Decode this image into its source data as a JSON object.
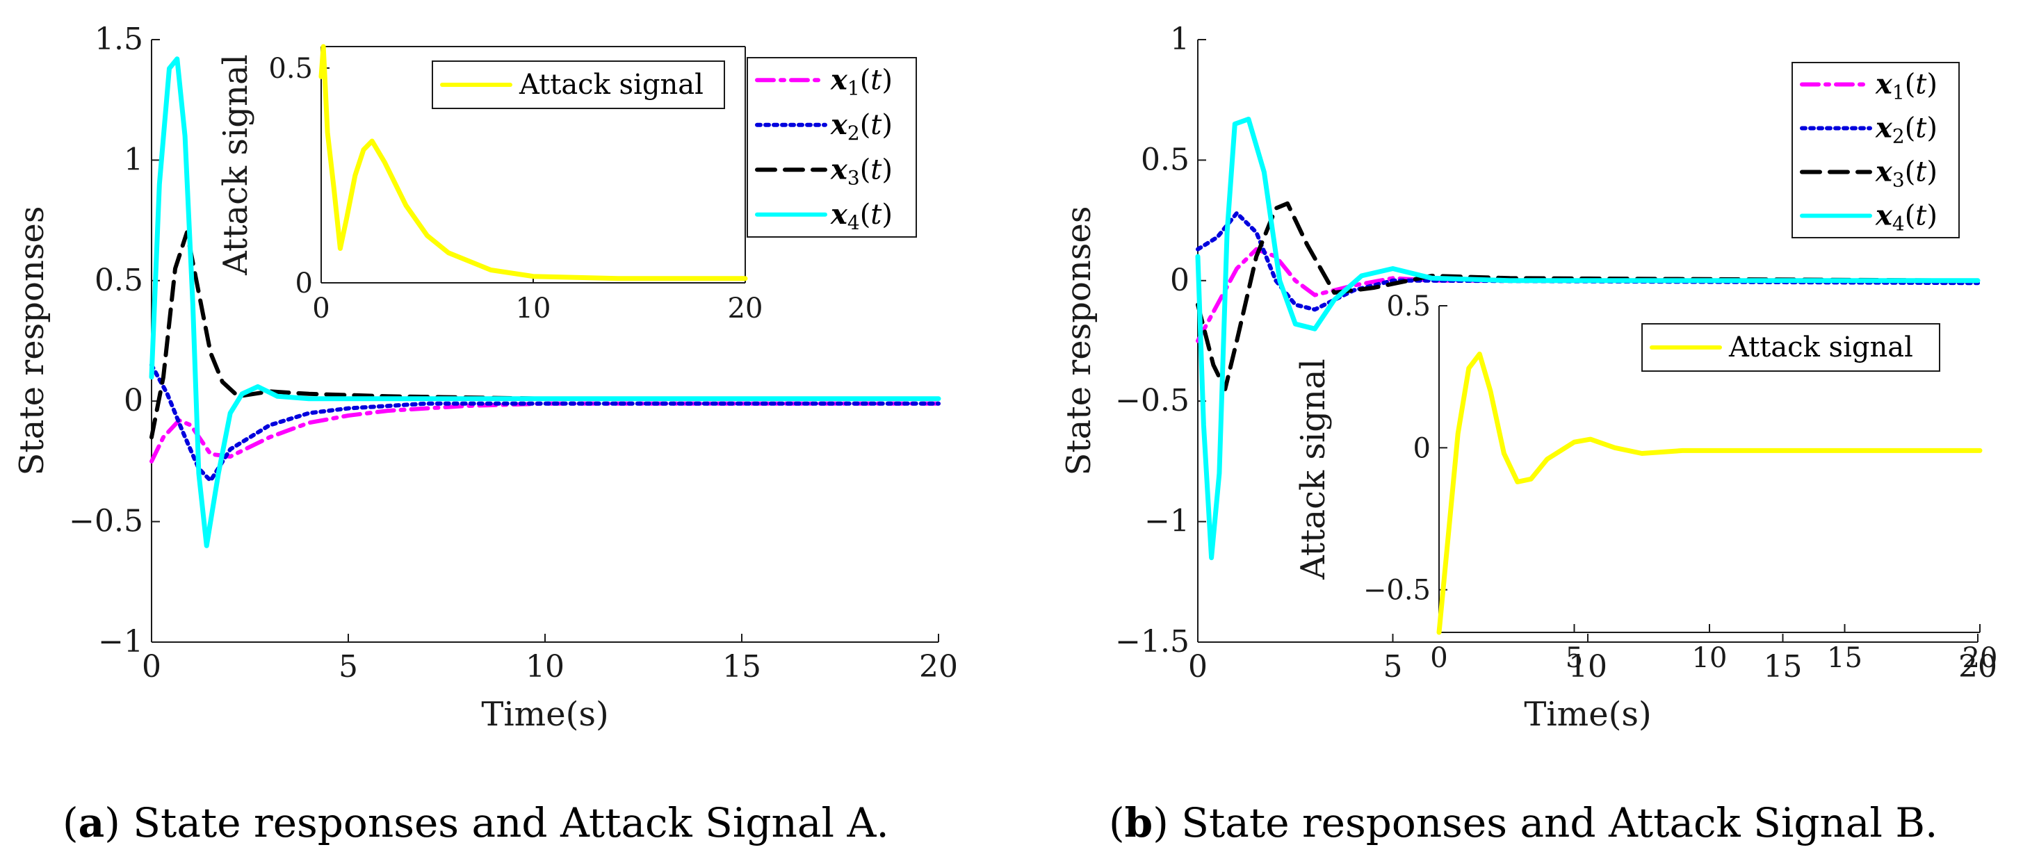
{
  "captions": {
    "a": {
      "tag": "a",
      "text": ") State responses and Attack Signal A."
    },
    "b": {
      "tag": "b",
      "text": ") State responses and Attack Signal B."
    }
  },
  "colors": {
    "x1": "#ff00ff",
    "x2": "#0000dd",
    "x3": "#000000",
    "x4": "#00ffff",
    "attack": "#ffff00"
  },
  "chart_data": [
    {
      "id": "a-main",
      "type": "line",
      "xlabel": "Time(s)",
      "ylabel": "State responses",
      "xlim": [
        0,
        20
      ],
      "ylim": [
        -1,
        1.5
      ],
      "xticks": [
        0,
        5,
        10,
        15,
        20
      ],
      "yticks": [
        -1,
        -0.5,
        0,
        0.5,
        1,
        1.5
      ],
      "legend": [
        "x1(t)",
        "x2(t)",
        "x3(t)",
        "x4(t)"
      ],
      "series": [
        {
          "name": "x1(t)",
          "color": "#ff00ff",
          "dash": "dashdot",
          "points": [
            [
              0,
              -0.25
            ],
            [
              0.3,
              -0.15
            ],
            [
              0.7,
              -0.08
            ],
            [
              1.0,
              -0.1
            ],
            [
              1.5,
              -0.22
            ],
            [
              2.0,
              -0.23
            ],
            [
              3,
              -0.15
            ],
            [
              4,
              -0.09
            ],
            [
              5,
              -0.06
            ],
            [
              6,
              -0.04
            ],
            [
              8,
              -0.02
            ],
            [
              10,
              -0.01
            ],
            [
              15,
              -0.01
            ],
            [
              20,
              -0.01
            ]
          ]
        },
        {
          "name": "x2(t)",
          "color": "#0000dd",
          "dash": "dotted",
          "points": [
            [
              0,
              0.15
            ],
            [
              0.4,
              0.03
            ],
            [
              0.8,
              -0.13
            ],
            [
              1.2,
              -0.28
            ],
            [
              1.5,
              -0.33
            ],
            [
              2.0,
              -0.2
            ],
            [
              3,
              -0.1
            ],
            [
              4,
              -0.05
            ],
            [
              5,
              -0.03
            ],
            [
              7,
              -0.01
            ],
            [
              10,
              -0.01
            ],
            [
              20,
              -0.01
            ]
          ]
        },
        {
          "name": "x3(t)",
          "color": "#000000",
          "dash": "dashed",
          "points": [
            [
              0,
              -0.15
            ],
            [
              0.3,
              0.1
            ],
            [
              0.6,
              0.55
            ],
            [
              0.9,
              0.7
            ],
            [
              1.2,
              0.45
            ],
            [
              1.5,
              0.2
            ],
            [
              1.8,
              0.08
            ],
            [
              2.2,
              0.02
            ],
            [
              3,
              0.04
            ],
            [
              4,
              0.03
            ],
            [
              6,
              0.02
            ],
            [
              10,
              0.01
            ],
            [
              20,
              0.01
            ]
          ]
        },
        {
          "name": "x4(t)",
          "color": "#00ffff",
          "dash": "solid",
          "points": [
            [
              0,
              0.1
            ],
            [
              0.2,
              0.9
            ],
            [
              0.45,
              1.38
            ],
            [
              0.65,
              1.42
            ],
            [
              0.85,
              1.1
            ],
            [
              1.05,
              0.4
            ],
            [
              1.2,
              -0.3
            ],
            [
              1.4,
              -0.6
            ],
            [
              1.7,
              -0.3
            ],
            [
              2.0,
              -0.05
            ],
            [
              2.3,
              0.03
            ],
            [
              2.7,
              0.06
            ],
            [
              3.2,
              0.02
            ],
            [
              4,
              0.01
            ],
            [
              6,
              0.01
            ],
            [
              20,
              0.01
            ]
          ]
        }
      ]
    },
    {
      "id": "a-inset",
      "type": "line",
      "xlabel": "",
      "ylabel": "Attack signal",
      "xlim": [
        0,
        20
      ],
      "ylim": [
        0,
        0.55
      ],
      "xticks": [
        0,
        10,
        20
      ],
      "yticks": [
        0,
        0.5
      ],
      "legend": [
        "Attack signal"
      ],
      "series": [
        {
          "name": "Attack signal",
          "color": "#ffff00",
          "dash": "solid",
          "points": [
            [
              0,
              0.48
            ],
            [
              0.1,
              0.55
            ],
            [
              0.3,
              0.35
            ],
            [
              0.6,
              0.22
            ],
            [
              0.9,
              0.08
            ],
            [
              1.2,
              0.15
            ],
            [
              1.6,
              0.25
            ],
            [
              2.0,
              0.31
            ],
            [
              2.4,
              0.33
            ],
            [
              3,
              0.28
            ],
            [
              4,
              0.18
            ],
            [
              5,
              0.11
            ],
            [
              6,
              0.07
            ],
            [
              8,
              0.03
            ],
            [
              10,
              0.015
            ],
            [
              14,
              0.01
            ],
            [
              20,
              0.01
            ]
          ]
        }
      ]
    },
    {
      "id": "b-main",
      "type": "line",
      "xlabel": "Time(s)",
      "ylabel": "State responses",
      "xlim": [
        0,
        20
      ],
      "ylim": [
        -1.5,
        1
      ],
      "xticks": [
        0,
        5,
        10,
        15,
        20
      ],
      "yticks": [
        -1.5,
        -1,
        -0.5,
        0,
        0.5,
        1
      ],
      "legend": [
        "x1(t)",
        "x2(t)",
        "x3(t)",
        "x4(t)"
      ],
      "series": [
        {
          "name": "x1(t)",
          "color": "#ff00ff",
          "dash": "dashdot",
          "points": [
            [
              0,
              -0.25
            ],
            [
              0.5,
              -0.1
            ],
            [
              1.0,
              0.05
            ],
            [
              1.5,
              0.13
            ],
            [
              2.0,
              0.1
            ],
            [
              2.5,
              0.0
            ],
            [
              3.0,
              -0.06
            ],
            [
              4,
              -0.02
            ],
            [
              5,
              0.01
            ],
            [
              6,
              0.0
            ],
            [
              20,
              0.0
            ]
          ]
        },
        {
          "name": "x2(t)",
          "color": "#0000dd",
          "dash": "dotted",
          "points": [
            [
              0,
              0.13
            ],
            [
              0.5,
              0.18
            ],
            [
              1.0,
              0.28
            ],
            [
              1.5,
              0.2
            ],
            [
              2.0,
              0.0
            ],
            [
              2.5,
              -0.1
            ],
            [
              3.0,
              -0.12
            ],
            [
              4,
              -0.04
            ],
            [
              5,
              0.0
            ],
            [
              6,
              0.0
            ],
            [
              20,
              -0.01
            ]
          ]
        },
        {
          "name": "x3(t)",
          "color": "#000000",
          "dash": "dashed",
          "points": [
            [
              0,
              -0.1
            ],
            [
              0.4,
              -0.35
            ],
            [
              0.7,
              -0.45
            ],
            [
              1.0,
              -0.25
            ],
            [
              1.5,
              0.1
            ],
            [
              2.0,
              0.3
            ],
            [
              2.3,
              0.32
            ],
            [
              2.8,
              0.15
            ],
            [
              3.5,
              -0.05
            ],
            [
              4.5,
              -0.03
            ],
            [
              6,
              0.02
            ],
            [
              8,
              0.01
            ],
            [
              20,
              0.0
            ]
          ]
        },
        {
          "name": "x4(t)",
          "color": "#00ffff",
          "dash": "solid",
          "points": [
            [
              0,
              0.1
            ],
            [
              0.15,
              -0.6
            ],
            [
              0.35,
              -1.15
            ],
            [
              0.55,
              -0.8
            ],
            [
              0.75,
              0.2
            ],
            [
              0.95,
              0.65
            ],
            [
              1.3,
              0.67
            ],
            [
              1.7,
              0.45
            ],
            [
              2.1,
              0.0
            ],
            [
              2.5,
              -0.18
            ],
            [
              3.0,
              -0.2
            ],
            [
              3.5,
              -0.08
            ],
            [
              4.2,
              0.02
            ],
            [
              5.0,
              0.05
            ],
            [
              6,
              0.01
            ],
            [
              8,
              0.0
            ],
            [
              20,
              0.0
            ]
          ]
        }
      ]
    },
    {
      "id": "b-inset",
      "type": "line",
      "xlabel": "",
      "ylabel": "Attack signal",
      "xlim": [
        0,
        20
      ],
      "ylim": [
        -0.65,
        0.5
      ],
      "xticks": [
        0,
        5,
        10,
        15,
        20
      ],
      "yticks": [
        -0.5,
        0,
        0.5
      ],
      "legend": [
        "Attack signal"
      ],
      "series": [
        {
          "name": "Attack signal",
          "color": "#ffff00",
          "dash": "solid",
          "points": [
            [
              0,
              -0.65
            ],
            [
              0.3,
              -0.35
            ],
            [
              0.7,
              0.05
            ],
            [
              1.1,
              0.28
            ],
            [
              1.5,
              0.33
            ],
            [
              1.9,
              0.2
            ],
            [
              2.4,
              -0.02
            ],
            [
              2.9,
              -0.12
            ],
            [
              3.4,
              -0.11
            ],
            [
              4.0,
              -0.04
            ],
            [
              5,
              0.02
            ],
            [
              5.6,
              0.03
            ],
            [
              6.5,
              0.0
            ],
            [
              7.5,
              -0.02
            ],
            [
              9,
              -0.01
            ],
            [
              11,
              -0.01
            ],
            [
              20,
              -0.01
            ]
          ]
        }
      ]
    }
  ]
}
